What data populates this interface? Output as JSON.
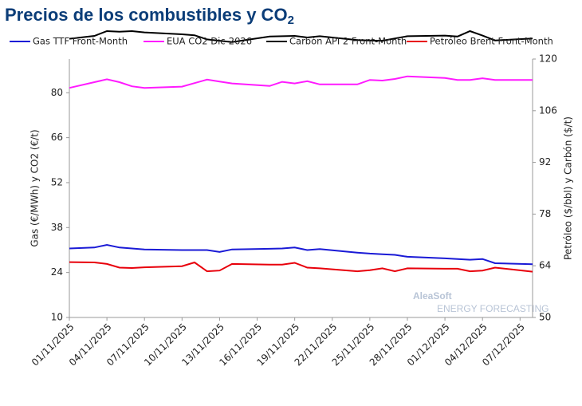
{
  "chart_data": {
    "type": "line",
    "title": "Precios de los combustibles y CO",
    "title_subscript": "2",
    "y_label": "Gas (€/MWh) y CO2 (€/t)",
    "y2_label": "Petróleo ($/bbl) y Carbón ($/t)",
    "watermark": "AleaSoft",
    "watermark_subtitle": "ENERGY FORECASTING",
    "x": [
      "01/11/2025",
      "03/11/2025",
      "04/11/2025",
      "05/11/2025",
      "06/11/2025",
      "07/11/2025",
      "10/11/2025",
      "11/11/2025",
      "12/11/2025",
      "13/11/2025",
      "14/11/2025",
      "17/11/2025",
      "18/11/2025",
      "19/11/2025",
      "20/11/2025",
      "21/11/2025",
      "24/11/2025",
      "25/11/2025",
      "26/11/2025",
      "27/11/2025",
      "28/11/2025",
      "01/12/2025",
      "02/12/2025",
      "03/12/2025",
      "04/12/2025",
      "05/12/2025",
      "08/12/2025"
    ],
    "xlim": [
      "01/11/2025",
      "08/12/2025"
    ],
    "xticks": [
      "01/11/2025",
      "04/11/2025",
      "07/11/2025",
      "10/11/2025",
      "13/11/2025",
      "16/11/2025",
      "19/11/2025",
      "22/11/2025",
      "25/11/2025",
      "28/11/2025",
      "01/12/2025",
      "04/12/2025",
      "07/12/2025"
    ],
    "ylim": [
      10,
      90.5
    ],
    "yticks": [
      10,
      24,
      38,
      52,
      66,
      80
    ],
    "y2lim": [
      50,
      120
    ],
    "y2ticks": [
      50,
      64,
      78,
      92,
      106,
      120
    ],
    "series": [
      {
        "name": "Gas TTF Front-Month",
        "color": "#1a1ad6",
        "values": [
          31.5,
          31.8,
          32.6,
          31.8,
          31.5,
          31.2,
          31.0,
          31.0,
          31.0,
          30.4,
          31.2,
          31.4,
          31.5,
          31.8,
          31.0,
          31.3,
          30.2,
          29.9,
          29.7,
          29.5,
          28.9,
          28.4,
          28.2,
          28.0,
          28.2,
          26.9,
          26.6
        ]
      },
      {
        "name": "EUA CO2 Dic-2026",
        "color": "#ff1aff",
        "values": [
          81.5,
          83.3,
          84.2,
          83.3,
          82.0,
          81.5,
          81.9,
          83.0,
          84.1,
          83.5,
          82.9,
          82.1,
          83.4,
          82.9,
          83.6,
          82.6,
          82.6,
          84.0,
          83.8,
          84.3,
          85.1,
          84.6,
          84.0,
          84.0,
          84.5,
          84.0,
          84.0
        ]
      },
      {
        "name": "Carbón API 2 Front-Month",
        "color": "#000000",
        "values": [
          96.8,
          97.7,
          99.2,
          99.0,
          99.2,
          98.8,
          98.2,
          97.9,
          96.6,
          96.2,
          95.8,
          97.5,
          97.6,
          97.7,
          97.2,
          97.6,
          96.4,
          96.3,
          96.2,
          96.9,
          97.6,
          97.8,
          97.5,
          99.2,
          97.8,
          96.3,
          96.9
        ]
      },
      {
        "name": "Petróleo Brent Front-Month",
        "color": "#e8000b",
        "axis": "y2",
        "values": [
          65.0,
          64.9,
          64.5,
          63.5,
          63.4,
          63.6,
          63.9,
          64.9,
          62.5,
          62.7,
          64.5,
          64.3,
          64.3,
          64.8,
          63.5,
          63.3,
          62.5,
          62.8,
          63.3,
          62.5,
          63.3,
          63.2,
          63.2,
          62.5,
          62.7,
          63.5,
          62.4
        ]
      }
    ]
  }
}
